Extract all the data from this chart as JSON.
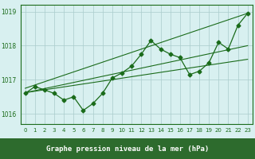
{
  "x": [
    0,
    1,
    2,
    3,
    4,
    5,
    6,
    7,
    8,
    9,
    10,
    11,
    12,
    13,
    14,
    15,
    16,
    17,
    18,
    19,
    20,
    21,
    22,
    23
  ],
  "y_main": [
    1016.6,
    1016.8,
    1016.7,
    1016.6,
    1016.4,
    1016.5,
    1016.1,
    1016.3,
    1016.6,
    1017.05,
    1017.2,
    1017.4,
    1017.75,
    1018.15,
    1017.9,
    1017.75,
    1017.65,
    1017.15,
    1017.25,
    1017.5,
    1018.1,
    1017.9,
    1018.6,
    1018.95
  ],
  "trend1_x": [
    0,
    23
  ],
  "trend1_y": [
    1016.62,
    1018.0
  ],
  "trend2_x": [
    0,
    23
  ],
  "trend2_y": [
    1016.62,
    1017.6
  ],
  "trend3_x": [
    0,
    23
  ],
  "trend3_y": [
    1016.75,
    1018.95
  ],
  "xlim": [
    -0.5,
    23.5
  ],
  "ylim": [
    1015.7,
    1019.2
  ],
  "yticks": [
    1016,
    1017,
    1018,
    1019
  ],
  "xticks": [
    0,
    1,
    2,
    3,
    4,
    5,
    6,
    7,
    8,
    9,
    10,
    11,
    12,
    13,
    14,
    15,
    16,
    17,
    18,
    19,
    20,
    21,
    22,
    23
  ],
  "xlabel": "Graphe pression niveau de la mer (hPa)",
  "line_color": "#1a6b1a",
  "bg_color": "#d8f0f0",
  "grid_color": "#aacccc",
  "label_bg": "#2d6b2d",
  "label_text": "#ffffff"
}
